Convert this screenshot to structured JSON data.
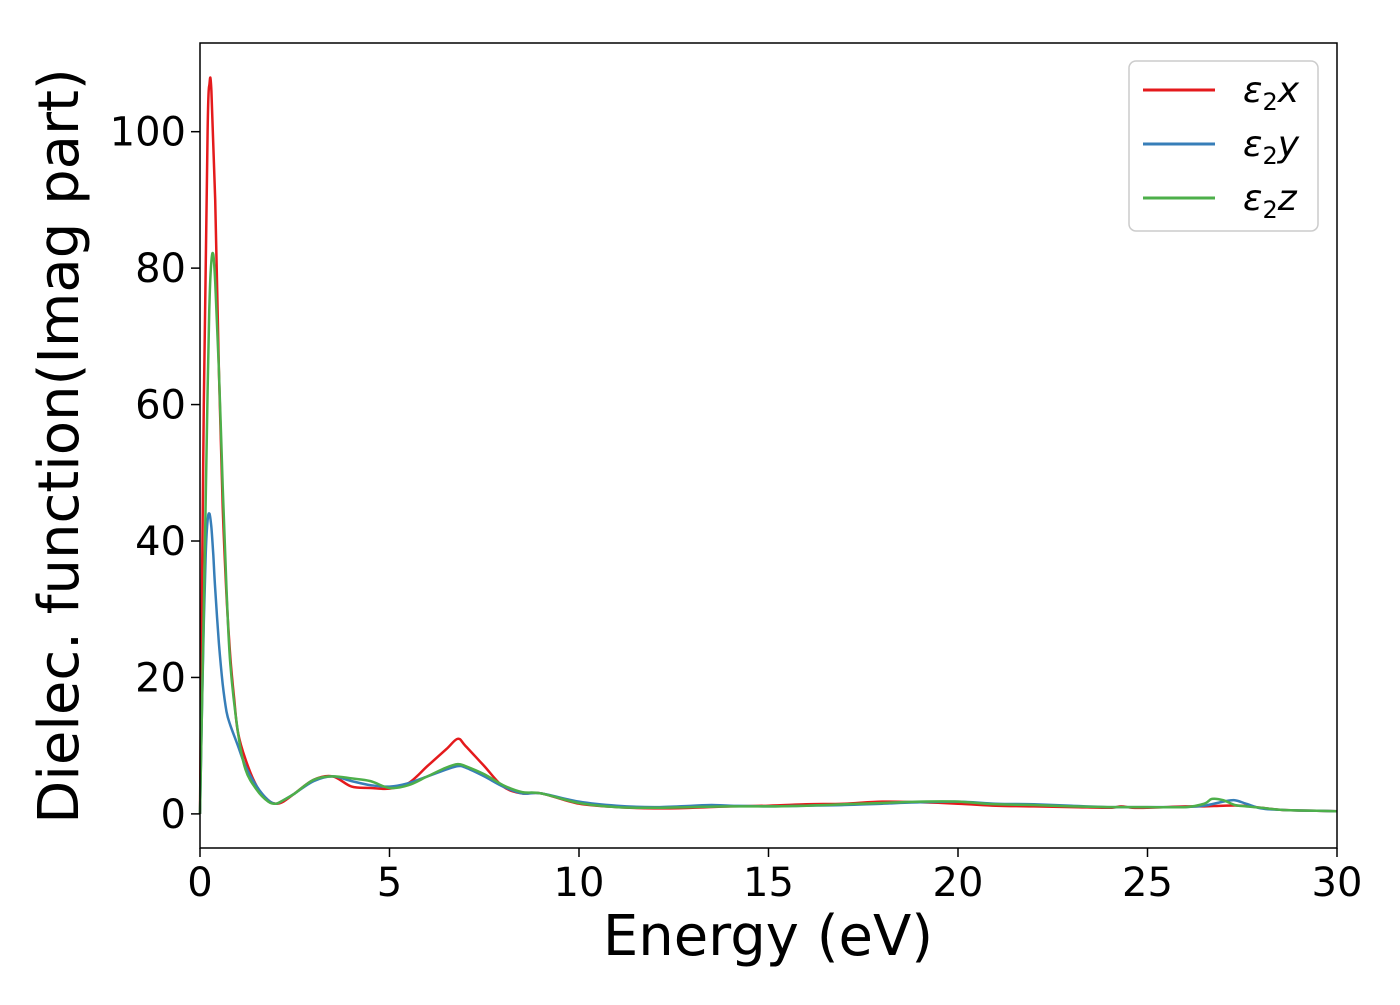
{
  "chart_data": {
    "type": "line",
    "title": "",
    "xlabel": "Energy (eV)",
    "ylabel": "Dielec. function(Imag part)",
    "xlim": [
      0,
      30
    ],
    "ylim": [
      -5,
      113
    ],
    "xticks": [
      0,
      5,
      10,
      15,
      20,
      25,
      30
    ],
    "xtick_labels": [
      "0",
      "5",
      "10",
      "15",
      "20",
      "25",
      "30"
    ],
    "yticks": [
      0,
      20,
      40,
      60,
      80,
      100
    ],
    "ytick_labels": [
      "0",
      "20",
      "40",
      "60",
      "80",
      "100"
    ],
    "grid": false,
    "legend": {
      "position": "top-right"
    },
    "series": [
      {
        "name": "ε2x",
        "symbol": "ε",
        "subscript": "2",
        "suffix": "x",
        "color": "#e41a1c",
        "x": [
          0,
          0.1,
          0.2,
          0.25,
          0.3,
          0.4,
          0.5,
          0.6,
          0.7,
          0.8,
          0.9,
          1.0,
          1.2,
          1.5,
          1.8,
          2.0,
          2.2,
          2.5,
          3.0,
          3.5,
          4.0,
          4.5,
          5.0,
          5.5,
          6.0,
          6.5,
          6.8,
          7.0,
          7.5,
          8.0,
          8.5,
          9.0,
          10,
          11,
          12,
          13,
          14,
          15,
          16,
          17,
          18,
          19,
          20,
          21,
          22,
          23,
          24,
          24.3,
          24.6,
          25,
          25.5,
          26,
          26.5,
          27,
          27.5,
          28,
          28.5,
          29,
          30
        ],
        "y": [
          0,
          60,
          100,
          107,
          106,
          90,
          65,
          45,
          32,
          23,
          17,
          12,
          8,
          4,
          2,
          1.5,
          1.8,
          3,
          5,
          5.5,
          4,
          3.8,
          3.7,
          4.5,
          7,
          9.5,
          11,
          10,
          7,
          4,
          3,
          3,
          1.5,
          1.0,
          0.8,
          0.9,
          1.1,
          1.2,
          1.4,
          1.5,
          1.8,
          1.7,
          1.5,
          1.2,
          1.1,
          1.0,
          0.9,
          1.1,
          0.9,
          0.9,
          1.0,
          1.1,
          1.1,
          1.2,
          1.2,
          0.9,
          0.6,
          0.5,
          0.4
        ]
      },
      {
        "name": "ε2y",
        "symbol": "ε",
        "subscript": "2",
        "suffix": "y",
        "color": "#377eb8",
        "x": [
          0,
          0.05,
          0.1,
          0.15,
          0.2,
          0.25,
          0.3,
          0.35,
          0.4,
          0.5,
          0.6,
          0.7,
          0.8,
          1.0,
          1.2,
          1.5,
          1.8,
          2.0,
          2.2,
          2.5,
          3.0,
          3.5,
          4.0,
          4.5,
          5.0,
          5.5,
          6.0,
          6.5,
          6.8,
          7.0,
          7.5,
          8.0,
          8.5,
          9.0,
          10,
          11,
          12,
          13,
          13.5,
          14,
          15,
          16,
          17,
          18,
          19,
          20,
          21,
          22,
          23,
          24,
          25,
          26,
          26.5,
          27,
          27.3,
          27.6,
          28,
          28.5,
          29,
          30
        ],
        "y": [
          0,
          15,
          28,
          38,
          43,
          44,
          42,
          38,
          33,
          25,
          19,
          15,
          13,
          10,
          7,
          4,
          2,
          1.5,
          2,
          3,
          4.8,
          5.5,
          4.8,
          4.2,
          4.0,
          4.5,
          5.5,
          6.5,
          7,
          6.8,
          5.5,
          4,
          3,
          3,
          1.8,
          1.2,
          1.0,
          1.2,
          1.3,
          1.2,
          1.1,
          1.2,
          1.3,
          1.5,
          1.7,
          1.8,
          1.5,
          1.4,
          1.2,
          1.0,
          1.0,
          1.0,
          1.2,
          1.8,
          2.0,
          1.5,
          0.8,
          0.6,
          0.5,
          0.4
        ]
      },
      {
        "name": "ε2z",
        "symbol": "ε",
        "subscript": "2",
        "suffix": "z",
        "color": "#4daf4a",
        "x": [
          0,
          0.1,
          0.2,
          0.25,
          0.3,
          0.35,
          0.4,
          0.5,
          0.6,
          0.7,
          0.8,
          1.0,
          1.2,
          1.5,
          1.8,
          2.0,
          2.2,
          2.5,
          3.0,
          3.5,
          4.0,
          4.5,
          5.0,
          5.5,
          6.0,
          6.5,
          6.8,
          7.0,
          7.5,
          8.0,
          8.5,
          9.0,
          10,
          11,
          12,
          13,
          14,
          15,
          16,
          17,
          18,
          19,
          20,
          21,
          22,
          23,
          24,
          25,
          26,
          26.5,
          26.7,
          27,
          27.3,
          27.6,
          28,
          28.5,
          29,
          30
        ],
        "y": [
          0,
          30,
          62,
          75,
          81,
          82,
          78,
          65,
          48,
          33,
          22,
          12,
          6.5,
          3.5,
          1.8,
          1.5,
          2,
          3,
          5,
          5.5,
          5.2,
          4.8,
          3.8,
          4.2,
          5.5,
          6.8,
          7.3,
          7,
          5.8,
          4.2,
          3.2,
          3.0,
          1.6,
          1.0,
          0.9,
          1.0,
          1.1,
          1.1,
          1.2,
          1.4,
          1.6,
          1.8,
          1.8,
          1.4,
          1.3,
          1.1,
          1.0,
          1.0,
          1.0,
          1.5,
          2.2,
          2.0,
          1.3,
          1.1,
          0.9,
          0.6,
          0.5,
          0.4
        ]
      }
    ]
  }
}
